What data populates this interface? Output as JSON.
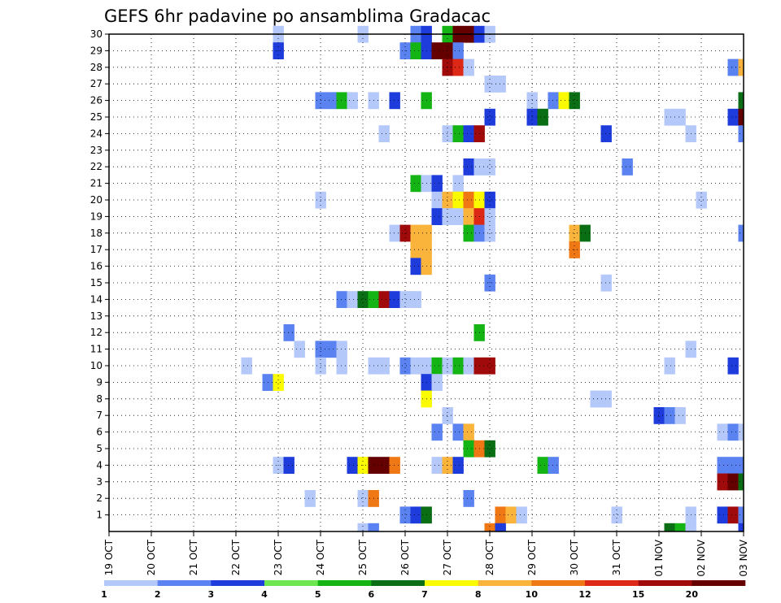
{
  "chart_data": {
    "type": "heatmap",
    "title": "GEFS 6hr padavine po ansamblima Gradacac",
    "xlabel": "",
    "ylabel": "",
    "x_tick_labels": [
      "19 OCT",
      "20 OCT",
      "21 OCT",
      "22 OCT",
      "23 OCT",
      "24 OCT",
      "25 OCT",
      "26 OCT",
      "27 OCT",
      "28 OCT",
      "29 OCT",
      "30 OCT",
      "31 OCT",
      "01 NOV",
      "02 NOV",
      "03 NOV"
    ],
    "x_range_steps": [
      0,
      60
    ],
    "steps_per_day": 4,
    "y_tick_labels": [
      "1",
      "2",
      "3",
      "4",
      "5",
      "6",
      "7",
      "8",
      "9",
      "10",
      "11",
      "12",
      "13",
      "14",
      "15",
      "16",
      "17",
      "18",
      "19",
      "20",
      "21",
      "22",
      "23",
      "24",
      "25",
      "26",
      "27",
      "28",
      "29",
      "30"
    ],
    "y_range_members": [
      0,
      30
    ],
    "grid": "dotted",
    "legend_position": "bottom",
    "legend": {
      "labels": [
        "1",
        "2",
        "3",
        "4",
        "5",
        "6",
        "7",
        "8",
        "10",
        "12",
        "15",
        "20"
      ],
      "colors": [
        "#b4c8fa",
        "#5a82f0",
        "#1e3cdc",
        "#6ee650",
        "#14b414",
        "#0a6e14",
        "#fafa00",
        "#fab43c",
        "#f07814",
        "#dc2814",
        "#a00a0a",
        "#640000"
      ]
    },
    "cells": [
      {
        "member": 30,
        "step": 16,
        "value": 1
      },
      {
        "member": 30,
        "step": 24,
        "value": 1
      },
      {
        "member": 30,
        "step": 29,
        "value": 2
      },
      {
        "member": 30,
        "step": 30,
        "value": 3
      },
      {
        "member": 30,
        "step": 32,
        "value": 5
      },
      {
        "member": 30,
        "step": 33,
        "value": 20
      },
      {
        "member": 30,
        "step": 34,
        "value": 20
      },
      {
        "member": 30,
        "step": 35,
        "value": 3
      },
      {
        "member": 30,
        "step": 36,
        "value": 1
      },
      {
        "member": 29,
        "step": 16,
        "value": 3
      },
      {
        "member": 29,
        "step": 28,
        "value": 2
      },
      {
        "member": 29,
        "step": 29,
        "value": 5
      },
      {
        "member": 29,
        "step": 30,
        "value": 3
      },
      {
        "member": 29,
        "step": 31,
        "value": 20
      },
      {
        "member": 29,
        "step": 32,
        "value": 20
      },
      {
        "member": 29,
        "step": 33,
        "value": 2
      },
      {
        "member": 28,
        "step": 32,
        "value": 15
      },
      {
        "member": 28,
        "step": 33,
        "value": 12
      },
      {
        "member": 28,
        "step": 34,
        "value": 1
      },
      {
        "member": 28,
        "step": 59,
        "value": 2
      },
      {
        "member": 28,
        "step": 60,
        "value": 8
      },
      {
        "member": 27,
        "step": 36,
        "value": 1
      },
      {
        "member": 27,
        "step": 37,
        "value": 1
      },
      {
        "member": 26,
        "step": 20,
        "value": 2
      },
      {
        "member": 26,
        "step": 21,
        "value": 2
      },
      {
        "member": 26,
        "step": 22,
        "value": 5
      },
      {
        "member": 26,
        "step": 23,
        "value": 1
      },
      {
        "member": 26,
        "step": 25,
        "value": 1
      },
      {
        "member": 26,
        "step": 27,
        "value": 3
      },
      {
        "member": 26,
        "step": 30,
        "value": 5
      },
      {
        "member": 26,
        "step": 40,
        "value": 1
      },
      {
        "member": 26,
        "step": 42,
        "value": 2
      },
      {
        "member": 26,
        "step": 43,
        "value": 7
      },
      {
        "member": 26,
        "step": 44,
        "value": 6
      },
      {
        "member": 26,
        "step": 60,
        "value": 6
      },
      {
        "member": 25,
        "step": 36,
        "value": 3
      },
      {
        "member": 25,
        "step": 40,
        "value": 3
      },
      {
        "member": 25,
        "step": 41,
        "value": 6
      },
      {
        "member": 25,
        "step": 53,
        "value": 1
      },
      {
        "member": 25,
        "step": 54,
        "value": 1
      },
      {
        "member": 25,
        "step": 59,
        "value": 3
      },
      {
        "member": 25,
        "step": 60,
        "value": 20
      },
      {
        "member": 24,
        "step": 26,
        "value": 1
      },
      {
        "member": 24,
        "step": 32,
        "value": 1
      },
      {
        "member": 24,
        "step": 33,
        "value": 5
      },
      {
        "member": 24,
        "step": 34,
        "value": 3
      },
      {
        "member": 24,
        "step": 35,
        "value": 15
      },
      {
        "member": 24,
        "step": 47,
        "value": 3
      },
      {
        "member": 24,
        "step": 55,
        "value": 1
      },
      {
        "member": 24,
        "step": 60,
        "value": 2
      },
      {
        "member": 22,
        "step": 34,
        "value": 3
      },
      {
        "member": 22,
        "step": 35,
        "value": 1
      },
      {
        "member": 22,
        "step": 36,
        "value": 1
      },
      {
        "member": 22,
        "step": 49,
        "value": 2
      },
      {
        "member": 21,
        "step": 29,
        "value": 5
      },
      {
        "member": 21,
        "step": 30,
        "value": 1
      },
      {
        "member": 21,
        "step": 31,
        "value": 3
      },
      {
        "member": 21,
        "step": 33,
        "value": 1
      },
      {
        "member": 20,
        "step": 20,
        "value": 1
      },
      {
        "member": 20,
        "step": 31,
        "value": 1
      },
      {
        "member": 20,
        "step": 32,
        "value": 8
      },
      {
        "member": 20,
        "step": 33,
        "value": 7
      },
      {
        "member": 20,
        "step": 34,
        "value": 10
      },
      {
        "member": 20,
        "step": 35,
        "value": 7
      },
      {
        "member": 20,
        "step": 36,
        "value": 3
      },
      {
        "member": 20,
        "step": 56,
        "value": 1
      },
      {
        "member": 19,
        "step": 31,
        "value": 3
      },
      {
        "member": 19,
        "step": 32,
        "value": 1
      },
      {
        "member": 19,
        "step": 33,
        "value": 1
      },
      {
        "member": 19,
        "step": 34,
        "value": 8
      },
      {
        "member": 19,
        "step": 35,
        "value": 12
      },
      {
        "member": 19,
        "step": 36,
        "value": 1
      },
      {
        "member": 18,
        "step": 27,
        "value": 1
      },
      {
        "member": 18,
        "step": 28,
        "value": 15
      },
      {
        "member": 18,
        "step": 29,
        "value": 8
      },
      {
        "member": 18,
        "step": 30,
        "value": 8
      },
      {
        "member": 18,
        "step": 34,
        "value": 5
      },
      {
        "member": 18,
        "step": 35,
        "value": 2
      },
      {
        "member": 18,
        "step": 36,
        "value": 1
      },
      {
        "member": 18,
        "step": 44,
        "value": 8
      },
      {
        "member": 18,
        "step": 45,
        "value": 6
      },
      {
        "member": 18,
        "step": 60,
        "value": 2
      },
      {
        "member": 17,
        "step": 29,
        "value": 8
      },
      {
        "member": 17,
        "step": 30,
        "value": 8
      },
      {
        "member": 17,
        "step": 44,
        "value": 10
      },
      {
        "member": 16,
        "step": 29,
        "value": 3
      },
      {
        "member": 16,
        "step": 30,
        "value": 8
      },
      {
        "member": 15,
        "step": 36,
        "value": 2
      },
      {
        "member": 15,
        "step": 47,
        "value": 1
      },
      {
        "member": 14,
        "step": 22,
        "value": 2
      },
      {
        "member": 14,
        "step": 23,
        "value": 1
      },
      {
        "member": 14,
        "step": 24,
        "value": 6
      },
      {
        "member": 14,
        "step": 25,
        "value": 5
      },
      {
        "member": 14,
        "step": 26,
        "value": 15
      },
      {
        "member": 14,
        "step": 27,
        "value": 3
      },
      {
        "member": 14,
        "step": 28,
        "value": 1
      },
      {
        "member": 14,
        "step": 29,
        "value": 1
      },
      {
        "member": 12,
        "step": 17,
        "value": 2
      },
      {
        "member": 12,
        "step": 35,
        "value": 5
      },
      {
        "member": 11,
        "step": 18,
        "value": 1
      },
      {
        "member": 11,
        "step": 20,
        "value": 2
      },
      {
        "member": 11,
        "step": 21,
        "value": 2
      },
      {
        "member": 11,
        "step": 22,
        "value": 1
      },
      {
        "member": 11,
        "step": 55,
        "value": 1
      },
      {
        "member": 10,
        "step": 13,
        "value": 1
      },
      {
        "member": 10,
        "step": 20,
        "value": 1
      },
      {
        "member": 10,
        "step": 22,
        "value": 1
      },
      {
        "member": 10,
        "step": 25,
        "value": 1
      },
      {
        "member": 10,
        "step": 26,
        "value": 1
      },
      {
        "member": 10,
        "step": 28,
        "value": 2
      },
      {
        "member": 10,
        "step": 29,
        "value": 1
      },
      {
        "member": 10,
        "step": 30,
        "value": 1
      },
      {
        "member": 10,
        "step": 31,
        "value": 5
      },
      {
        "member": 10,
        "step": 32,
        "value": 1
      },
      {
        "member": 10,
        "step": 33,
        "value": 5
      },
      {
        "member": 10,
        "step": 34,
        "value": 1
      },
      {
        "member": 10,
        "step": 35,
        "value": 15
      },
      {
        "member": 10,
        "step": 36,
        "value": 15
      },
      {
        "member": 10,
        "step": 53,
        "value": 1
      },
      {
        "member": 10,
        "step": 59,
        "value": 3
      },
      {
        "member": 9,
        "step": 15,
        "value": 2
      },
      {
        "member": 9,
        "step": 16,
        "value": 7
      },
      {
        "member": 9,
        "step": 30,
        "value": 3
      },
      {
        "member": 9,
        "step": 31,
        "value": 1
      },
      {
        "member": 8,
        "step": 30,
        "value": 7
      },
      {
        "member": 8,
        "step": 46,
        "value": 1
      },
      {
        "member": 8,
        "step": 47,
        "value": 1
      },
      {
        "member": 7,
        "step": 32,
        "value": 1
      },
      {
        "member": 7,
        "step": 52,
        "value": 3
      },
      {
        "member": 7,
        "step": 53,
        "value": 2
      },
      {
        "member": 7,
        "step": 54,
        "value": 1
      },
      {
        "member": 6,
        "step": 31,
        "value": 2
      },
      {
        "member": 6,
        "step": 33,
        "value": 2
      },
      {
        "member": 6,
        "step": 34,
        "value": 8
      },
      {
        "member": 6,
        "step": 58,
        "value": 1
      },
      {
        "member": 6,
        "step": 59,
        "value": 2
      },
      {
        "member": 6,
        "step": 60,
        "value": 1
      },
      {
        "member": 5,
        "step": 34,
        "value": 5
      },
      {
        "member": 5,
        "step": 35,
        "value": 10
      },
      {
        "member": 5,
        "step": 36,
        "value": 6
      },
      {
        "member": 4,
        "step": 16,
        "value": 1
      },
      {
        "member": 4,
        "step": 17,
        "value": 3
      },
      {
        "member": 4,
        "step": 23,
        "value": 3
      },
      {
        "member": 4,
        "step": 24,
        "value": 7
      },
      {
        "member": 4,
        "step": 25,
        "value": 20
      },
      {
        "member": 4,
        "step": 26,
        "value": 20
      },
      {
        "member": 4,
        "step": 27,
        "value": 10
      },
      {
        "member": 4,
        "step": 31,
        "value": 1
      },
      {
        "member": 4,
        "step": 32,
        "value": 8
      },
      {
        "member": 4,
        "step": 33,
        "value": 3
      },
      {
        "member": 4,
        "step": 41,
        "value": 5
      },
      {
        "member": 4,
        "step": 42,
        "value": 2
      },
      {
        "member": 4,
        "step": 58,
        "value": 2
      },
      {
        "member": 4,
        "step": 59,
        "value": 2
      },
      {
        "member": 4,
        "step": 60,
        "value": 2
      },
      {
        "member": 3,
        "step": 58,
        "value": 15
      },
      {
        "member": 3,
        "step": 59,
        "value": 20
      },
      {
        "member": 3,
        "step": 60,
        "value": 6
      },
      {
        "member": 2,
        "step": 19,
        "value": 1
      },
      {
        "member": 2,
        "step": 24,
        "value": 1
      },
      {
        "member": 2,
        "step": 25,
        "value": 10
      },
      {
        "member": 2,
        "step": 34,
        "value": 2
      },
      {
        "member": 1,
        "step": 28,
        "value": 2
      },
      {
        "member": 1,
        "step": 29,
        "value": 3
      },
      {
        "member": 1,
        "step": 30,
        "value": 6
      },
      {
        "member": 1,
        "step": 37,
        "value": 10
      },
      {
        "member": 1,
        "step": 38,
        "value": 8
      },
      {
        "member": 1,
        "step": 39,
        "value": 1
      },
      {
        "member": 1,
        "step": 48,
        "value": 1
      },
      {
        "member": 1,
        "step": 55,
        "value": 1
      },
      {
        "member": 1,
        "step": 58,
        "value": 3
      },
      {
        "member": 1,
        "step": 59,
        "value": 15
      },
      {
        "member": 1,
        "step": 60,
        "value": 2
      },
      {
        "member": 0,
        "step": 24,
        "value": 1
      },
      {
        "member": 0,
        "step": 25,
        "value": 2
      },
      {
        "member": 0,
        "step": 36,
        "value": 10
      },
      {
        "member": 0,
        "step": 37,
        "value": 3
      },
      {
        "member": 0,
        "step": 53,
        "value": 6
      },
      {
        "member": 0,
        "step": 54,
        "value": 5
      },
      {
        "member": 0,
        "step": 55,
        "value": 1
      },
      {
        "member": 0,
        "step": 60,
        "value": 3
      }
    ]
  }
}
